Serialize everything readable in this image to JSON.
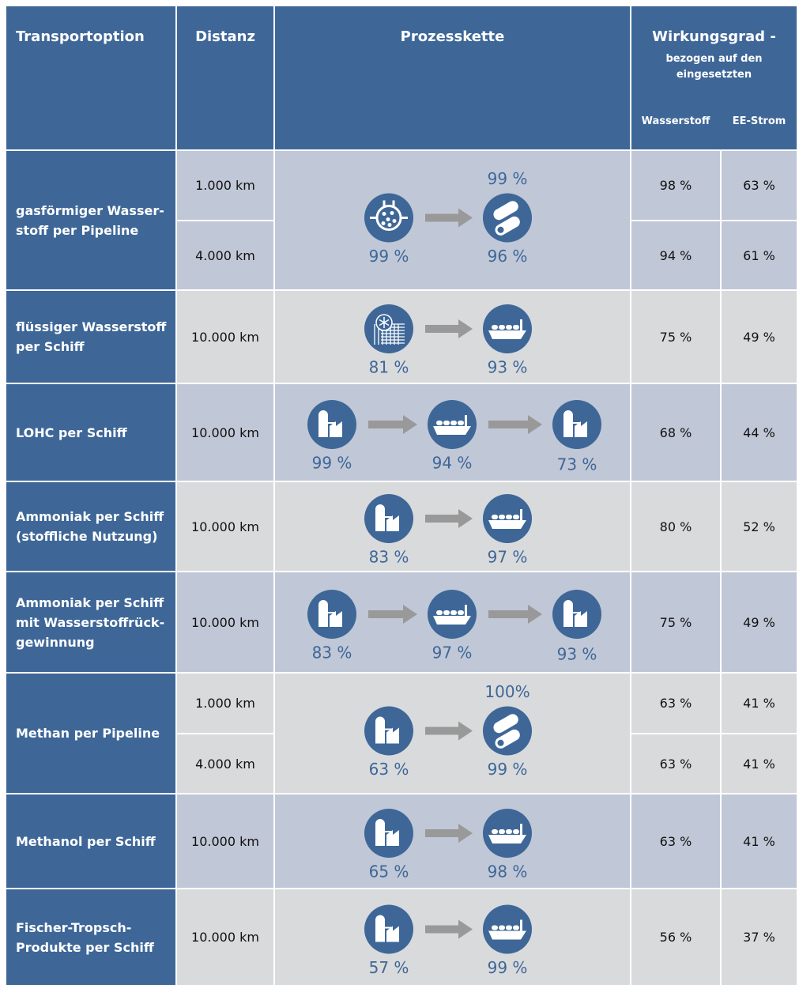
{
  "header": {
    "transport": "Transportoption",
    "distanz": "Distanz",
    "prozesskette": "Prozesskette",
    "wirkungsgrad": "Wirkungsgrad -",
    "wirkungsgrad_sub": [
      "bezogen auf den",
      "eingesetzten"
    ],
    "wasserstoff": "Wasserstoff",
    "ee_strom": "EE-Strom"
  },
  "rows": [
    {
      "label": [
        "gasförmiger Wasser-",
        "stoff per Pipeline"
      ],
      "distances": [
        "1.000 km",
        "4.000 km"
      ],
      "steps": [
        {
          "below": "99 %"
        },
        {
          "above": "99 %",
          "below": "96 %"
        }
      ],
      "wasserstoff": [
        "98 %",
        "94 %"
      ],
      "ee_strom": [
        "63 %",
        "61 %"
      ]
    },
    {
      "label": [
        "flüssiger Wasserstoff",
        "per Schiff"
      ],
      "distances": [
        "10.000 km"
      ],
      "steps": [
        {
          "below": "81 %"
        },
        {
          "below": "93 %"
        }
      ],
      "wasserstoff": [
        "75 %"
      ],
      "ee_strom": [
        "49 %"
      ]
    },
    {
      "label": [
        "LOHC per Schiff"
      ],
      "distances": [
        "10.000 km"
      ],
      "steps": [
        {
          "below": "99 %"
        },
        {
          "below": "94 %"
        },
        {
          "below": "73 %"
        }
      ],
      "wasserstoff": [
        "68 %"
      ],
      "ee_strom": [
        "44 %"
      ]
    },
    {
      "label": [
        "Ammoniak per Schiff",
        "(stoffliche Nutzung)"
      ],
      "distances": [
        "10.000 km"
      ],
      "steps": [
        {
          "below": "83 %"
        },
        {
          "below": "97 %"
        }
      ],
      "wasserstoff": [
        "80 %"
      ],
      "ee_strom": [
        "52 %"
      ]
    },
    {
      "label": [
        "Ammoniak per Schiff",
        "mit Wasserstoffrück-",
        "gewinnung"
      ],
      "distances": [
        "10.000 km"
      ],
      "steps": [
        {
          "below": "83 %"
        },
        {
          "below": "97 %"
        },
        {
          "below": "93 %"
        }
      ],
      "wasserstoff": [
        "75 %"
      ],
      "ee_strom": [
        "49 %"
      ]
    },
    {
      "label": [
        "Methan per Pipeline"
      ],
      "distances": [
        "1.000 km",
        "4.000 km"
      ],
      "steps": [
        {
          "below": "63 %"
        },
        {
          "above": "100%",
          "below": "99 %"
        }
      ],
      "wasserstoff": [
        "63 %",
        "63 %"
      ],
      "ee_strom": [
        "41 %",
        "41 %"
      ]
    },
    {
      "label": [
        "Methanol per Schiff"
      ],
      "distances": [
        "10.000 km"
      ],
      "steps": [
        {
          "below": "65 %"
        },
        {
          "below": "98 %"
        }
      ],
      "wasserstoff": [
        "63 %"
      ],
      "ee_strom": [
        "41 %"
      ]
    },
    {
      "label": [
        "Fischer-Tropsch-",
        "Produkte per Schiff"
      ],
      "distances": [
        "10.000 km"
      ],
      "steps": [
        {
          "below": "57 %"
        },
        {
          "below": "99 %"
        }
      ],
      "wasserstoff": [
        "56 %"
      ],
      "ee_strom": [
        "37 %"
      ]
    }
  ]
}
